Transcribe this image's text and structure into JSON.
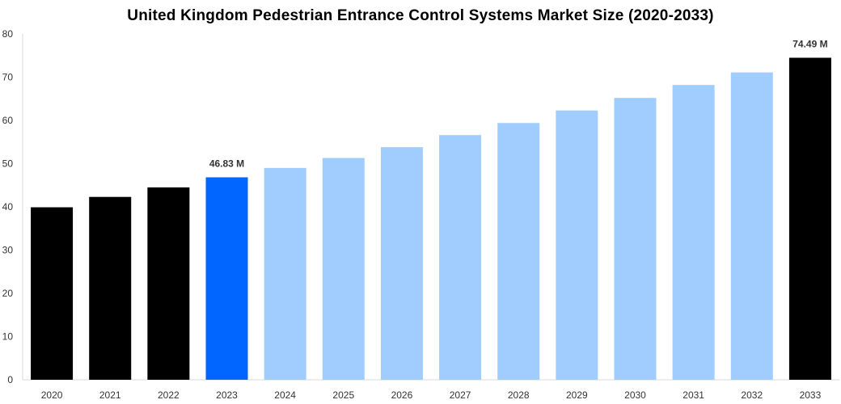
{
  "chart_data": {
    "type": "bar",
    "title": "United Kingdom Pedestrian Entrance Control Systems Market Size (2020-2033)",
    "categories": [
      "2020",
      "2021",
      "2022",
      "2023",
      "2024",
      "2025",
      "2026",
      "2027",
      "2028",
      "2029",
      "2030",
      "2031",
      "2032",
      "2033"
    ],
    "values": [
      39.9,
      42.3,
      44.5,
      46.83,
      49.0,
      51.3,
      53.8,
      56.6,
      59.4,
      62.3,
      65.2,
      68.2,
      71.1,
      74.49
    ],
    "colors": [
      "#000000",
      "#000000",
      "#000000",
      "#0066ff",
      "#a0cdfe",
      "#a0cdfe",
      "#a0cdfe",
      "#a0cdfe",
      "#a0cdfe",
      "#a0cdfe",
      "#a0cdfe",
      "#a0cdfe",
      "#a0cdfe",
      "#000000"
    ],
    "data_labels": [
      {
        "index": 3,
        "text": "46.83 M"
      },
      {
        "index": 13,
        "text": "74.49 M"
      }
    ],
    "yticks": [
      "0",
      "10",
      "20",
      "30",
      "40",
      "50",
      "60",
      "70",
      "80"
    ],
    "ylim": [
      0,
      80
    ],
    "xlabel": "",
    "ylabel": "",
    "grid": false,
    "legend": "none"
  }
}
